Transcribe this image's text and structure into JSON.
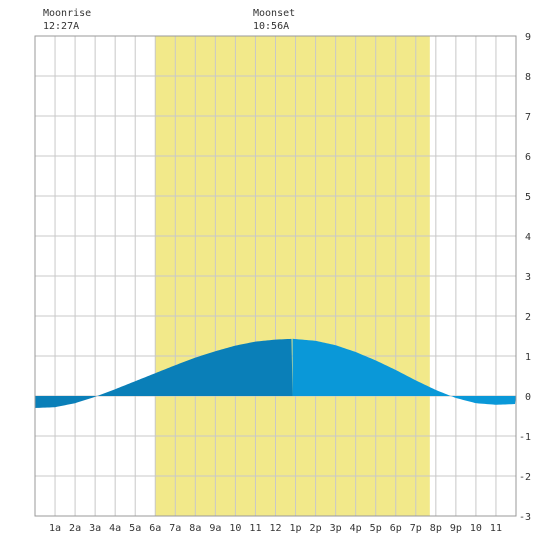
{
  "moon": {
    "rise_label": "Moonrise",
    "rise_time": "12:27A",
    "set_label": "Moonset",
    "set_time": "10:56A"
  },
  "colors": {
    "daylight": "#f2e98a",
    "tide_dark": "#0a7fb8",
    "tide_light": "#0a98d8",
    "grid": "#c8c8c8",
    "border": "#999999",
    "text": "#333333"
  },
  "chart_data": {
    "type": "area",
    "x_unit": "hour of day",
    "xlim": [
      0,
      24
    ],
    "ylim": [
      -3,
      9
    ],
    "grid": true,
    "x_tick_labels": [
      {
        "hour": 1,
        "label": "1a"
      },
      {
        "hour": 2,
        "label": "2a"
      },
      {
        "hour": 3,
        "label": "3a"
      },
      {
        "hour": 4,
        "label": "4a"
      },
      {
        "hour": 5,
        "label": "5a"
      },
      {
        "hour": 6,
        "label": "6a"
      },
      {
        "hour": 7,
        "label": "7a"
      },
      {
        "hour": 8,
        "label": "8a"
      },
      {
        "hour": 9,
        "label": "9a"
      },
      {
        "hour": 10,
        "label": "10"
      },
      {
        "hour": 11,
        "label": "11"
      },
      {
        "hour": 12,
        "label": "12"
      },
      {
        "hour": 13,
        "label": "1p"
      },
      {
        "hour": 14,
        "label": "2p"
      },
      {
        "hour": 15,
        "label": "3p"
      },
      {
        "hour": 16,
        "label": "4p"
      },
      {
        "hour": 17,
        "label": "5p"
      },
      {
        "hour": 18,
        "label": "6p"
      },
      {
        "hour": 19,
        "label": "7p"
      },
      {
        "hour": 20,
        "label": "8p"
      },
      {
        "hour": 21,
        "label": "9p"
      },
      {
        "hour": 22,
        "label": "10"
      },
      {
        "hour": 23,
        "label": "11"
      }
    ],
    "y_tick_labels": [
      "-3",
      "-2",
      "-1",
      "0",
      "1",
      "2",
      "3",
      "4",
      "5",
      "6",
      "7",
      "8",
      "9"
    ],
    "y_ticks": [
      -3,
      -2,
      -1,
      0,
      1,
      2,
      3,
      4,
      5,
      6,
      7,
      8,
      9
    ],
    "daylight": {
      "start": 6.0,
      "end": 19.7
    },
    "shade_split_hour": 12.85,
    "tide": [
      {
        "x": 0,
        "y": -0.3
      },
      {
        "x": 1,
        "y": -0.28
      },
      {
        "x": 2,
        "y": -0.18
      },
      {
        "x": 3,
        "y": -0.02
      },
      {
        "x": 4,
        "y": 0.17
      },
      {
        "x": 5,
        "y": 0.37
      },
      {
        "x": 6,
        "y": 0.57
      },
      {
        "x": 7,
        "y": 0.77
      },
      {
        "x": 8,
        "y": 0.96
      },
      {
        "x": 9,
        "y": 1.12
      },
      {
        "x": 10,
        "y": 1.26
      },
      {
        "x": 11,
        "y": 1.36
      },
      {
        "x": 12,
        "y": 1.41
      },
      {
        "x": 12.85,
        "y": 1.43
      },
      {
        "x": 14,
        "y": 1.38
      },
      {
        "x": 15,
        "y": 1.27
      },
      {
        "x": 16,
        "y": 1.1
      },
      {
        "x": 17,
        "y": 0.89
      },
      {
        "x": 18,
        "y": 0.65
      },
      {
        "x": 19,
        "y": 0.39
      },
      {
        "x": 20,
        "y": 0.15
      },
      {
        "x": 21,
        "y": -0.05
      },
      {
        "x": 22,
        "y": -0.18
      },
      {
        "x": 23,
        "y": -0.22
      },
      {
        "x": 24,
        "y": -0.2
      }
    ]
  }
}
